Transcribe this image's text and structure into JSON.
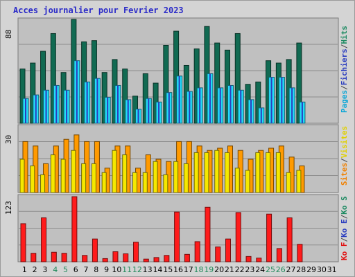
{
  "title": "Acces journalier pour Fevrier 2023",
  "colors": {
    "visits": "#1b8a61",
    "pages": "#24dcf8",
    "hits": "#116a52",
    "files": "#2a3dbf",
    "sites": "#ff9a00",
    "visites": "#f5e800",
    "bandwidth": "#ff1b1b",
    "weekend_label": "#1f8a5a",
    "weekday_label": "#000000"
  },
  "legend_top": [
    {
      "text": "Pages",
      "color": "#0aa6d6"
    },
    {
      "text": "/",
      "color": "#444444"
    },
    {
      "text": "Fichiers",
      "color": "#2a3dbf"
    },
    {
      "text": "/",
      "color": "#444444"
    },
    {
      "text": "Hits",
      "color": "#1b8a61"
    }
  ],
  "legend_mid": [
    {
      "text": "Sites",
      "color": "#f08000"
    },
    {
      "text": "/",
      "color": "#444444"
    },
    {
      "text": "Visites",
      "color": "#e0d000"
    }
  ],
  "legend_bot": [
    {
      "text": "Ko F",
      "color": "#e01010"
    },
    {
      "text": "/",
      "color": "#444444"
    },
    {
      "text": "Ko E",
      "color": "#2a3dbf"
    },
    {
      "text": "/",
      "color": "#444444"
    },
    {
      "text": "Ko S",
      "color": "#1b8a61"
    }
  ],
  "chart_data": {
    "type": "bar",
    "title": "Acces journalier pour Fevrier 2023",
    "days": [
      "1",
      "2",
      "3",
      "4",
      "5",
      "6",
      "7",
      "8",
      "9",
      "10",
      "11",
      "12",
      "13",
      "14",
      "15",
      "16",
      "17",
      "18",
      "19",
      "20",
      "21",
      "22",
      "23",
      "24",
      "25",
      "26",
      "27",
      "28",
      "29",
      "30",
      "31"
    ],
    "weekend_days": [
      "4",
      "5",
      "11",
      "12",
      "18",
      "19",
      "25",
      "26"
    ],
    "panels": [
      {
        "id": "hits",
        "max_label": "88",
        "ymax": 88,
        "series": [
          {
            "name": "Hits",
            "values": [
              46,
              51,
              61,
              76,
              43,
              88,
              69,
              70,
              43,
              54,
              46,
              23,
              42,
              34,
              66,
              78,
              49,
              63,
              82,
              68,
              62,
              76,
              33,
              35,
              53,
              51,
              54,
              68,
              0,
              0,
              0
            ]
          },
          {
            "name": "Pages",
            "values": [
              21,
              24,
              28,
              32,
              28,
              53,
              35,
              38,
              22,
              32,
              20,
              12,
              21,
              18,
              26,
              40,
              27,
              30,
              42,
              30,
              32,
              28,
              20,
              13,
              39,
              39,
              30,
              18,
              0,
              0,
              0
            ]
          },
          {
            "name": "Fichiers",
            "values": [
              21,
              24,
              28,
              32,
              28,
              53,
              35,
              38,
              22,
              32,
              20,
              12,
              21,
              18,
              26,
              40,
              27,
              30,
              42,
              30,
              32,
              28,
              20,
              13,
              39,
              39,
              30,
              18,
              0,
              0,
              0
            ]
          }
        ]
      },
      {
        "id": "visits",
        "max_label": "30",
        "ymax": 30,
        "series": [
          {
            "name": "Sites",
            "values": [
              23,
              21,
              13,
              21,
              24,
              26,
              23,
              23,
              11,
              21,
              21,
              11,
              17,
              15,
              14,
              23,
              23,
              21,
              19,
              20,
              21,
              19,
              15,
              19,
              20,
              21,
              16,
              12,
              0,
              0,
              0
            ]
          },
          {
            "name": "Visites",
            "values": [
              15,
              12,
              8,
              17,
              15,
              19,
              13,
              13,
              9,
              19,
              17,
              9,
              9,
              14,
              8,
              14,
              13,
              18,
              18,
              19,
              18,
              11,
              10,
              18,
              18,
              18,
              9,
              10,
              0,
              0,
              0
            ]
          }
        ]
      },
      {
        "id": "bandwidth",
        "max_label": "123",
        "ymax": 123,
        "series": [
          {
            "name": "Ko F",
            "values": [
              72,
              16,
              83,
              18,
              16,
              123,
              12,
              43,
              6,
              19,
              15,
              37,
              5,
              8,
              12,
              94,
              14,
              38,
              103,
              28,
              43,
              93,
              10,
              7,
              90,
              25,
              83,
              33,
              0,
              0,
              0
            ]
          }
        ]
      }
    ]
  }
}
